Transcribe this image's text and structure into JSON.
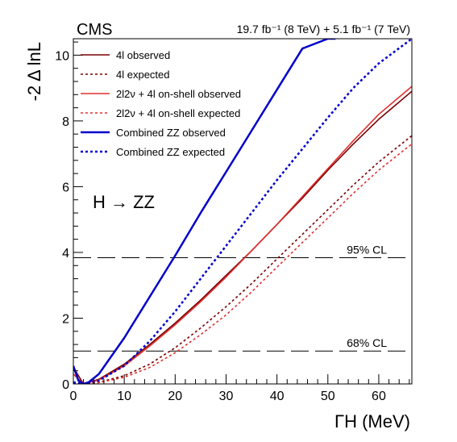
{
  "chart_data": {
    "type": "line",
    "experiment": "CMS",
    "luminosity_label": "19.7 fb⁻¹ (8 TeV) + 5.1 fb⁻¹ (7 TeV)",
    "process_label": "H → ZZ",
    "xlabel": "ΓH (MeV)",
    "ylabel": "-2 Δ lnL",
    "xlim": [
      0,
      66.5
    ],
    "ylim": [
      0,
      10.5
    ],
    "x_ticks": [
      0,
      10,
      20,
      30,
      40,
      50,
      60
    ],
    "y_ticks": [
      0,
      2,
      4,
      6,
      8,
      10
    ],
    "grid": false,
    "legend_position": "top-left",
    "cl_lines": [
      {
        "label": "95% CL",
        "y": 3.84
      },
      {
        "label": "68% CL",
        "y": 1.0
      }
    ],
    "series": [
      {
        "name": "4l observed",
        "color": "#7a0000",
        "style": "solid",
        "x": [
          0,
          2,
          5,
          10,
          15,
          20,
          25,
          30,
          35,
          40,
          45,
          50,
          55,
          60,
          66.5
        ],
        "y": [
          0.5,
          0.0,
          0.14,
          0.6,
          1.2,
          1.85,
          2.55,
          3.3,
          4.05,
          4.85,
          5.65,
          6.5,
          7.3,
          8.05,
          8.9
        ]
      },
      {
        "name": "4l expected",
        "color": "#7a0000",
        "style": "dotted",
        "x": [
          0,
          2,
          5,
          10,
          15,
          20,
          25,
          30,
          35,
          40,
          45,
          50,
          55,
          60,
          66.5
        ],
        "y": [
          0.05,
          0.0,
          0.05,
          0.25,
          0.6,
          1.1,
          1.7,
          2.35,
          3.05,
          3.8,
          4.55,
          5.3,
          6.05,
          6.75,
          7.55
        ]
      },
      {
        "name": "2l2ν + 4l on-shell observed",
        "color": "#e03030",
        "style": "solid",
        "x": [
          0,
          2,
          5,
          10,
          15,
          20,
          25,
          30,
          35,
          40,
          45,
          50,
          55,
          60,
          66.5
        ],
        "y": [
          0.3,
          0.0,
          0.12,
          0.55,
          1.15,
          1.8,
          2.5,
          3.25,
          4.05,
          4.85,
          5.7,
          6.55,
          7.4,
          8.2,
          9.05
        ]
      },
      {
        "name": "2l2ν + 4l on-shell expected",
        "color": "#e03030",
        "style": "dotted",
        "x": [
          0,
          2,
          5,
          10,
          15,
          20,
          25,
          30,
          35,
          40,
          45,
          50,
          55,
          60,
          66.5
        ],
        "y": [
          0.05,
          0.0,
          0.04,
          0.2,
          0.5,
          0.95,
          1.5,
          2.1,
          2.8,
          3.55,
          4.3,
          5.05,
          5.8,
          6.5,
          7.3
        ]
      },
      {
        "name": "Combined ZZ observed",
        "color": "#0000cc",
        "style": "solid",
        "x": [
          0,
          1,
          2,
          3,
          5,
          10,
          15,
          20,
          25,
          30,
          35,
          40,
          45,
          50,
          51.5
        ],
        "y": [
          0.55,
          0.1,
          0.0,
          0.05,
          0.3,
          1.4,
          2.65,
          3.9,
          5.2,
          6.45,
          7.7,
          8.95,
          10.2,
          10.5,
          10.5
        ]
      },
      {
        "name": "Combined ZZ expected",
        "color": "#0000cc",
        "style": "dotted",
        "x": [
          0,
          2,
          5,
          10,
          15,
          20,
          25,
          30,
          35,
          40,
          45,
          50,
          55,
          60,
          66.5
        ],
        "y": [
          0.05,
          0.0,
          0.1,
          0.55,
          1.3,
          2.2,
          3.2,
          4.2,
          5.2,
          6.2,
          7.15,
          8.1,
          9.0,
          9.75,
          10.5
        ]
      }
    ]
  }
}
